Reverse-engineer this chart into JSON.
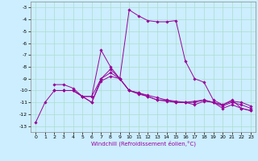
{
  "xlabel": "Windchill (Refroidissement éolien,°C)",
  "background_color": "#cceeff",
  "grid_color": "#aaddcc",
  "line_color": "#990099",
  "xlim": [
    -0.5,
    23.5
  ],
  "ylim": [
    -13.5,
    -2.5
  ],
  "xticks": [
    0,
    1,
    2,
    3,
    4,
    5,
    6,
    7,
    8,
    9,
    10,
    11,
    12,
    13,
    14,
    15,
    16,
    17,
    18,
    19,
    20,
    21,
    22,
    23
  ],
  "yticks": [
    -13,
    -12,
    -11,
    -10,
    -9,
    -8,
    -7,
    -6,
    -5,
    -4,
    -3
  ],
  "series": [
    [
      0,
      -12.7,
      1,
      -11.0,
      2,
      -10.0,
      3,
      -10.0,
      4,
      -10.0,
      5,
      -10.5,
      6,
      -10.5,
      7,
      -9.0,
      8,
      -8.2,
      9,
      -9.0,
      10,
      -3.2,
      11,
      -3.7,
      12,
      -4.1,
      13,
      -4.2,
      14,
      -4.2,
      15,
      -4.1,
      16,
      -7.5,
      17,
      -9.0,
      18,
      -9.3,
      19,
      -10.8,
      20,
      -11.2,
      21,
      -10.8,
      22,
      -11.5,
      23,
      -11.7
    ],
    [
      2,
      -10.0,
      3,
      -10.0,
      4,
      -10.0,
      5,
      -10.5,
      6,
      -11.0,
      7,
      -9.0,
      8,
      -8.5,
      9,
      -9.0,
      10,
      -10.0,
      11,
      -10.3,
      12,
      -10.5,
      13,
      -10.8,
      14,
      -10.8,
      15,
      -11.0,
      16,
      -11.0,
      17,
      -11.2,
      18,
      -10.9,
      19,
      -11.0,
      20,
      -11.5,
      21,
      -11.2,
      22,
      -11.5,
      23,
      -11.7
    ],
    [
      2,
      -10.0,
      3,
      -10.0,
      4,
      -10.0,
      5,
      -10.5,
      6,
      -11.0,
      7,
      -9.2,
      8,
      -8.8,
      9,
      -9.0,
      10,
      -10.0,
      11,
      -10.2,
      12,
      -10.5,
      13,
      -10.8,
      14,
      -10.9,
      15,
      -11.0,
      16,
      -11.0,
      17,
      -11.0,
      18,
      -10.8,
      19,
      -11.0,
      20,
      -11.3,
      21,
      -11.0,
      22,
      -11.2,
      23,
      -11.5
    ],
    [
      2,
      -9.5,
      3,
      -9.5,
      4,
      -9.8,
      5,
      -10.5,
      6,
      -10.5,
      7,
      -6.6,
      8,
      -8.0,
      9,
      -9.0,
      10,
      -10.0,
      11,
      -10.2,
      12,
      -10.4,
      13,
      -10.6,
      14,
      -10.8,
      15,
      -10.9,
      16,
      -11.0,
      17,
      -10.9,
      18,
      -10.8,
      19,
      -11.0,
      20,
      -11.2,
      21,
      -10.9,
      22,
      -11.0,
      23,
      -11.3
    ]
  ]
}
